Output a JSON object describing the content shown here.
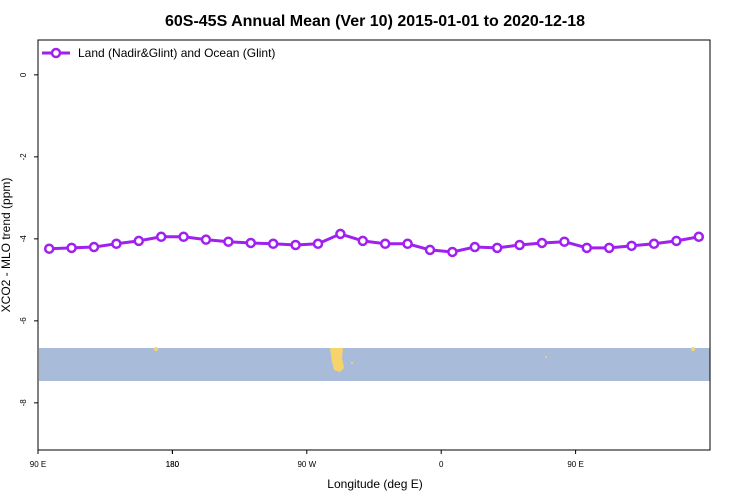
{
  "chart_data": {
    "type": "line",
    "title": "60S-45S Annual Mean (Ver 10)   2015-01-01 to 2020-12-18",
    "x_label": "Longitude (deg E)",
    "y_label": "XCO2 - MLO trend (ppm)",
    "x": [
      97.5,
      112.5,
      127.5,
      142.5,
      157.5,
      172.5,
      187.5,
      202.5,
      217.5,
      232.5,
      247.5,
      262.5,
      277.5,
      292.5,
      307.5,
      322.5,
      337.5,
      352.5,
      367.5,
      382.5,
      397.5,
      412.5,
      427.5,
      442.5,
      457.5,
      472.5,
      487.5,
      502.5,
      517.5,
      532.5
    ],
    "series": [
      {
        "name": "Land (Nadir&Glint) and Ocean (Glint)",
        "color": "#a020f0",
        "values": [
          -4.24,
          -4.22,
          -4.2,
          -4.12,
          -4.05,
          -3.95,
          -3.95,
          -4.02,
          -4.07,
          -4.1,
          -4.12,
          -4.15,
          -4.12,
          -3.88,
          -4.05,
          -4.12,
          -4.12,
          -4.27,
          -4.32,
          -4.2,
          -4.22,
          -4.15,
          -4.1,
          -4.07,
          -4.22,
          -4.22,
          -4.17,
          -4.12,
          -4.05,
          -3.95
        ]
      }
    ],
    "xlim": [
      90,
      540
    ],
    "xticks": [
      {
        "value": 90,
        "label": "90 E"
      },
      180,
      {
        "value": 270,
        "label": "90 W"
      },
      {
        "value": 360,
        "label": "0"
      },
      {
        "value": 450,
        "label": "90 E"
      },
      180.0001
    ],
    "ylim": [
      -9.15,
      0.85
    ],
    "yticks": [
      0,
      -2,
      -4,
      -6,
      -8
    ],
    "legend": "top-left"
  }
}
